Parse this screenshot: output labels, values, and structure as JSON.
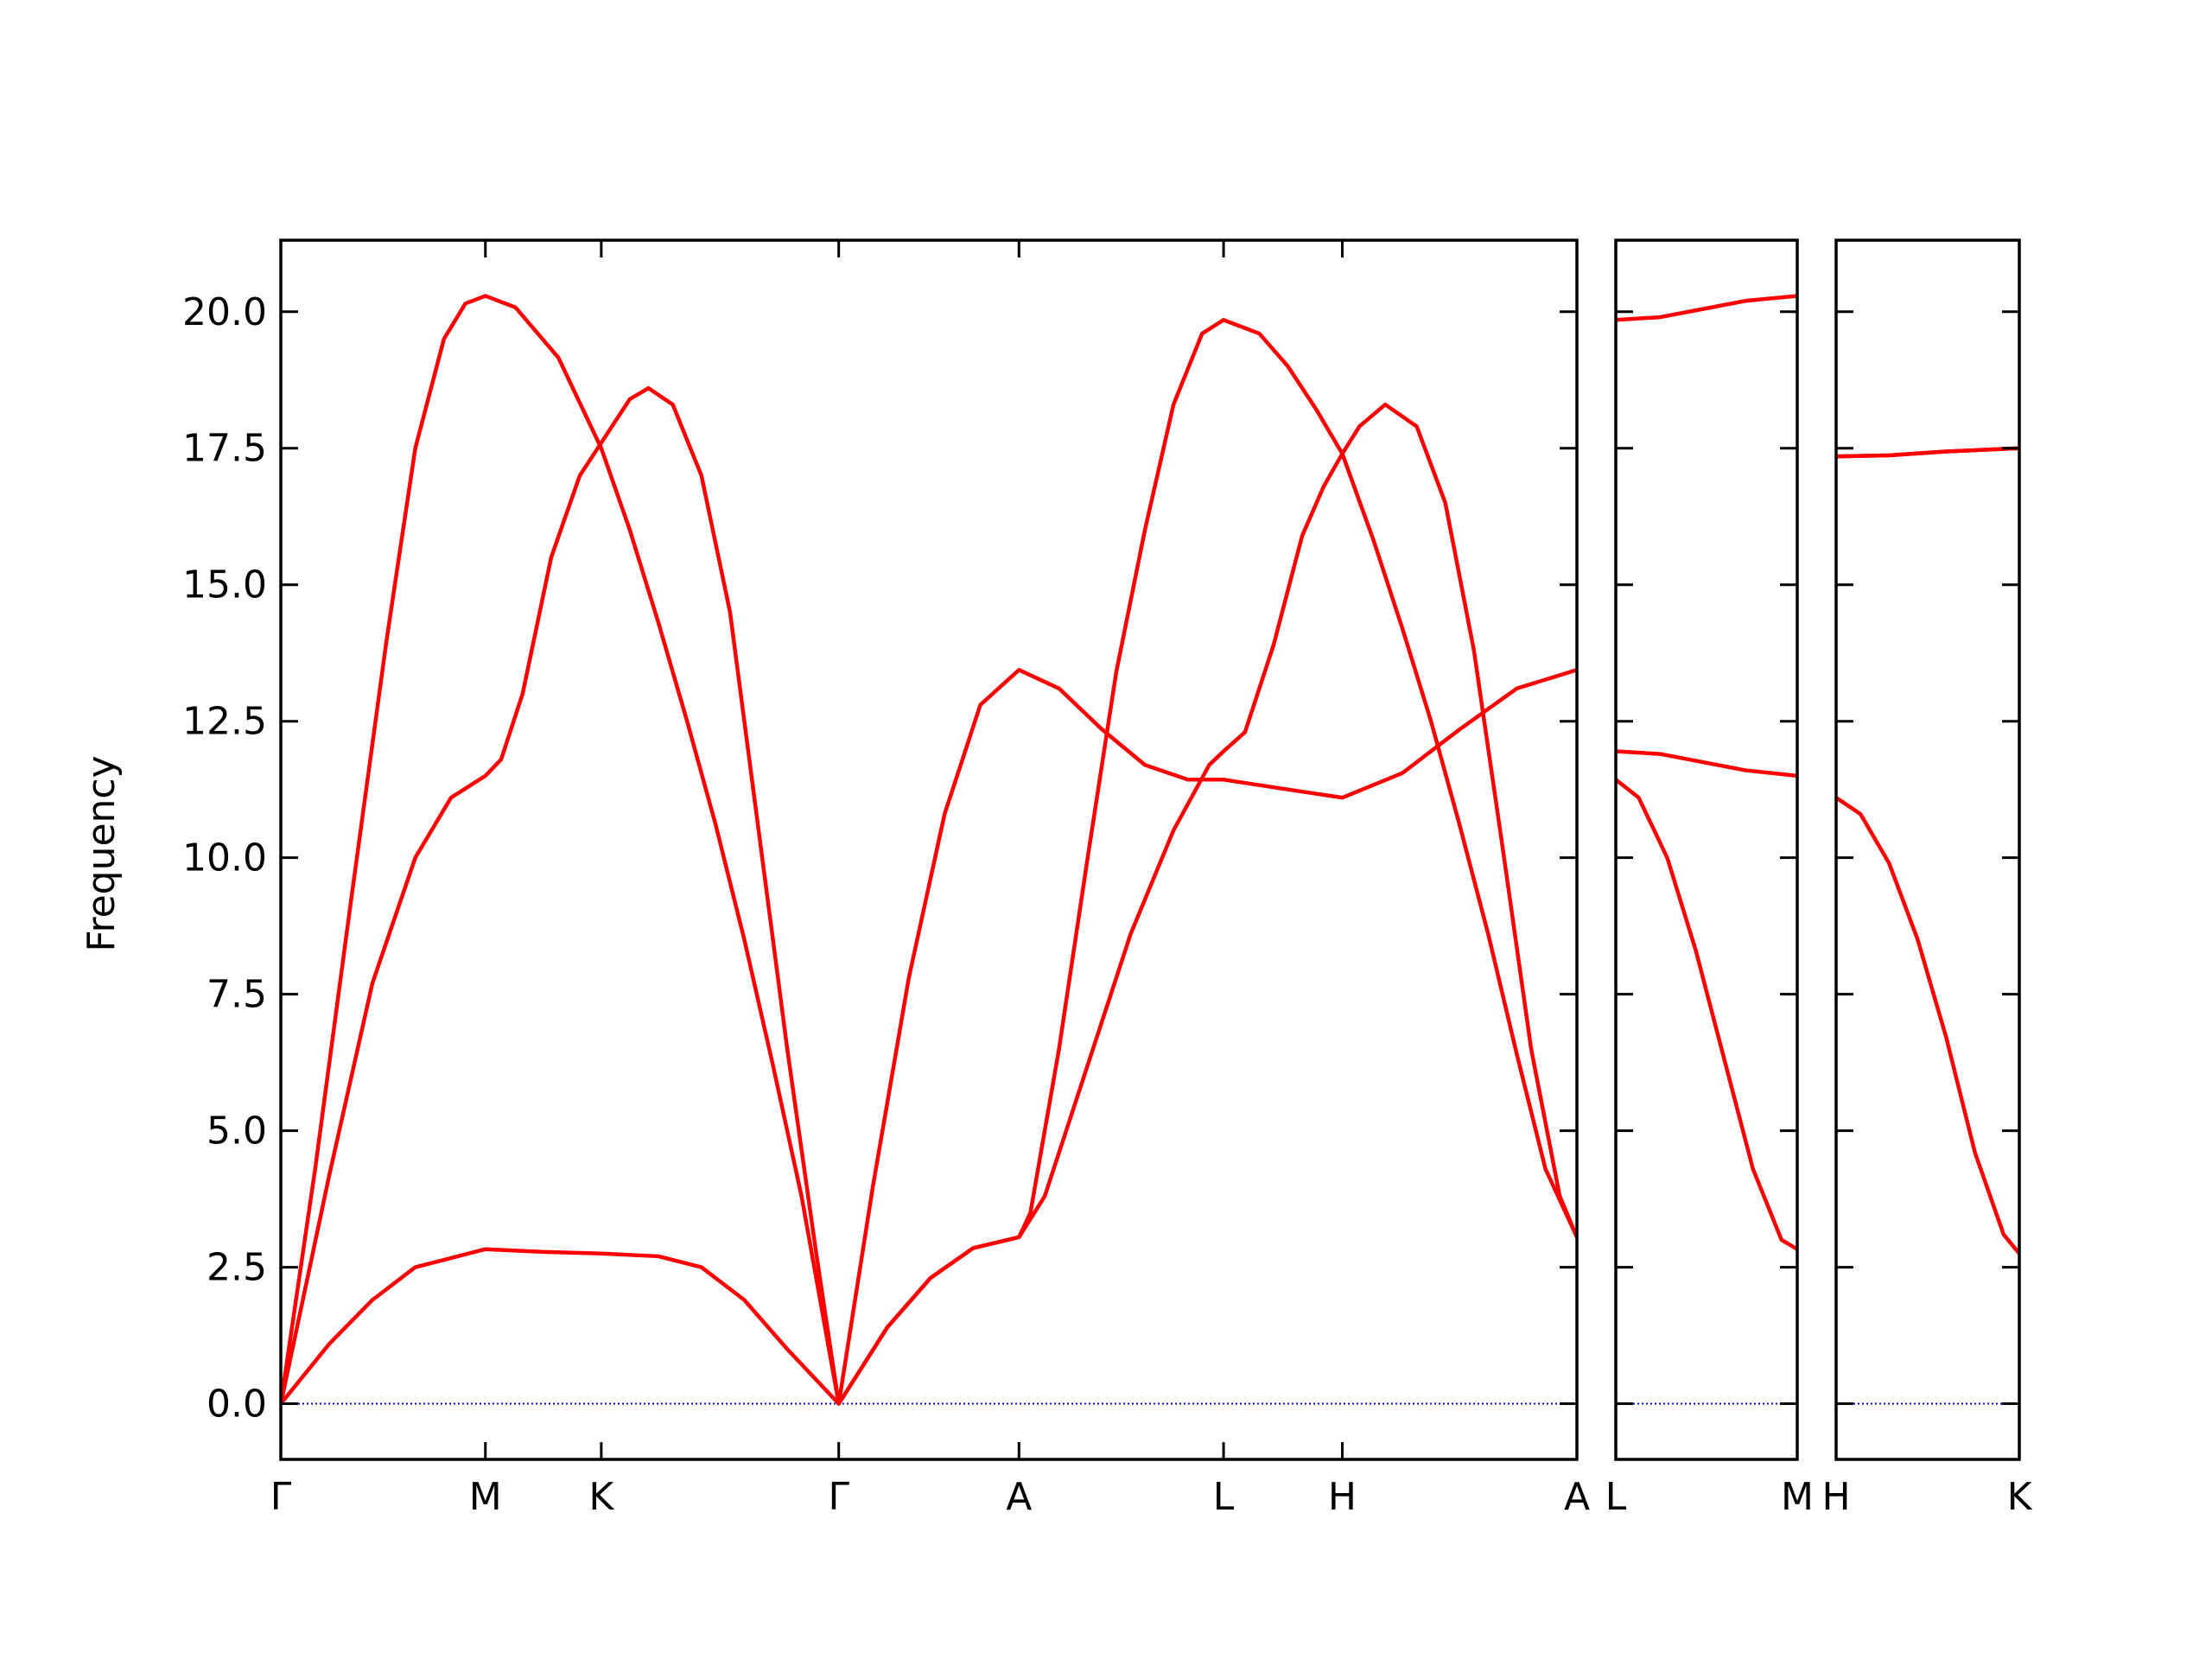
{
  "chart_data": [
    {
      "type": "line",
      "ylabel": "Frequency",
      "xlim": [
        0,
        9.06
      ],
      "ylim": [
        -1.02,
        21.31
      ],
      "xticks": [
        {
          "value": 0,
          "label": "Γ"
        },
        {
          "value": 1.43,
          "label": "M"
        },
        {
          "value": 2.24,
          "label": "K"
        },
        {
          "value": 3.9,
          "label": "Γ"
        },
        {
          "value": 5.16,
          "label": "A"
        },
        {
          "value": 6.59,
          "label": "L"
        },
        {
          "value": 7.42,
          "label": "H"
        },
        {
          "value": 9.06,
          "label": "A"
        }
      ],
      "yticks": [
        {
          "value": 0,
          "label": "0.0"
        },
        {
          "value": 2.5,
          "label": "2.5"
        },
        {
          "value": 5,
          "label": "5.0"
        },
        {
          "value": 7.5,
          "label": "7.5"
        },
        {
          "value": 10,
          "label": "10.0"
        },
        {
          "value": 12.5,
          "label": "12.5"
        },
        {
          "value": 15,
          "label": "15.0"
        },
        {
          "value": 17.5,
          "label": "17.5"
        },
        {
          "value": 20,
          "label": "20.0"
        }
      ],
      "show_ytick_labels": true,
      "zero_line": {
        "value": 0,
        "color": "#0000cc",
        "style": "dotted"
      },
      "series": [
        {
          "color": "#ff0000",
          "x": [
            0,
            0.34,
            0.64,
            0.94,
            1.43,
            1.84,
            2.24,
            2.64,
            2.94,
            3.24,
            3.54,
            3.9,
            4.24,
            4.54,
            4.84,
            5.16,
            5.34,
            5.64,
            5.94,
            6.24,
            6.49,
            6.59,
            6.74,
            6.94,
            7.14,
            7.29,
            7.42,
            7.54,
            7.72,
            7.94,
            8.14,
            8.34,
            8.54,
            8.74,
            8.94,
            9.06
          ],
          "values": [
            0,
            1.1,
            1.9,
            2.5,
            2.83,
            2.78,
            2.75,
            2.7,
            2.5,
            1.9,
            1.0,
            0,
            1.4,
            2.3,
            2.85,
            3.05,
            3.8,
            6.2,
            8.6,
            10.5,
            11.7,
            11.95,
            12.3,
            13.9,
            15.9,
            16.8,
            17.4,
            17.9,
            18.3,
            17.9,
            16.5,
            13.8,
            10.2,
            6.5,
            3.8,
            3.05
          ]
        },
        {
          "color": "#ff0000",
          "x": [
            0,
            0.34,
            0.64,
            0.94,
            1.19,
            1.43,
            1.54,
            1.69,
            1.89,
            2.09,
            2.24,
            2.44,
            2.57,
            2.74,
            2.94,
            3.14,
            3.34,
            3.54,
            3.74,
            3.9,
            4.24,
            4.54,
            4.84,
            5.16,
            5.24,
            5.44,
            5.64,
            5.84,
            6.04,
            6.24,
            6.44,
            6.59,
            6.84,
            7.04,
            7.24,
            7.42,
            7.64,
            7.84,
            8.04,
            8.24,
            8.44,
            8.64,
            8.84,
            9.06
          ],
          "values": [
            0,
            4.2,
            7.7,
            10.0,
            11.1,
            11.5,
            11.8,
            13.0,
            15.5,
            17.0,
            17.6,
            18.4,
            18.6,
            18.3,
            17.0,
            14.5,
            10.5,
            6.5,
            2.8,
            0,
            1.4,
            2.3,
            2.85,
            3.05,
            3.5,
            6.5,
            10.0,
            13.4,
            16.0,
            18.3,
            19.6,
            19.85,
            19.6,
            19.0,
            18.2,
            17.4,
            15.8,
            14.2,
            12.5,
            10.6,
            8.6,
            6.4,
            4.3,
            3.05
          ]
        },
        {
          "color": "#ff0000",
          "x": [
            0,
            0.24,
            0.49,
            0.74,
            0.94,
            1.14,
            1.29,
            1.43,
            1.64,
            1.94,
            2.24,
            2.44,
            2.64,
            2.84,
            3.04,
            3.24,
            3.44,
            3.64,
            3.9,
            4.14,
            4.39,
            4.64,
            4.89,
            5.16,
            5.44,
            5.74,
            6.04,
            6.34,
            6.59,
            7.04,
            7.42,
            7.84,
            8.24,
            8.64,
            9.06
          ],
          "values": [
            0,
            4.3,
            9.2,
            14.0,
            17.5,
            19.5,
            20.15,
            20.29,
            20.08,
            19.16,
            17.5,
            16.0,
            14.3,
            12.5,
            10.6,
            8.5,
            6.2,
            3.8,
            0,
            4.0,
            7.8,
            10.8,
            12.8,
            13.44,
            13.1,
            12.35,
            11.7,
            11.43,
            11.43,
            11.25,
            11.1,
            11.55,
            12.35,
            13.1,
            13.44
          ]
        }
      ]
    },
    {
      "type": "line",
      "xlim": [
        0,
        1.27
      ],
      "ylim": [
        -1.02,
        21.31
      ],
      "xticks": [
        {
          "value": 0,
          "label": "L"
        },
        {
          "value": 1.27,
          "label": "M"
        }
      ],
      "yticks": [
        0,
        2.5,
        5,
        7.5,
        10,
        12.5,
        15,
        17.5,
        20
      ],
      "show_ytick_labels": false,
      "zero_line": {
        "value": 0,
        "color": "#0000cc",
        "style": "dotted"
      },
      "series": [
        {
          "color": "#ff0000",
          "x": [
            0,
            0.31,
            0.61,
            0.91,
            1.27
          ],
          "values": [
            19.85,
            19.9,
            20.05,
            20.2,
            20.29
          ]
        },
        {
          "color": "#ff0000",
          "x": [
            0,
            0.31,
            0.61,
            0.91,
            1.27
          ],
          "values": [
            11.95,
            11.9,
            11.75,
            11.6,
            11.5
          ]
        },
        {
          "color": "#ff0000",
          "x": [
            0,
            0.16,
            0.36,
            0.56,
            0.76,
            0.96,
            1.16,
            1.27
          ],
          "values": [
            11.43,
            11.1,
            10.0,
            8.3,
            6.3,
            4.3,
            3.0,
            2.83
          ]
        }
      ]
    },
    {
      "type": "line",
      "xlim": [
        0,
        1.28
      ],
      "ylim": [
        -1.02,
        21.31
      ],
      "xticks": [
        {
          "value": 0,
          "label": "H"
        },
        {
          "value": 1.28,
          "label": "K"
        }
      ],
      "yticks": [
        0,
        2.5,
        5,
        7.5,
        10,
        12.5,
        15,
        17.5,
        20
      ],
      "show_ytick_labels": false,
      "zero_line": {
        "value": 0,
        "color": "#0000cc",
        "style": "dotted"
      },
      "series": [
        {
          "color": "#ff0000",
          "x": [
            0,
            0.37,
            0.77,
            1.28
          ],
          "values": [
            17.35,
            17.37,
            17.44,
            17.5
          ]
        },
        {
          "color": "#ff0000",
          "x": [
            0,
            0.37,
            0.77,
            1.28
          ],
          "values": [
            17.35,
            17.37,
            17.44,
            17.5
          ]
        },
        {
          "color": "#ff0000",
          "x": [
            0,
            0.17,
            0.37,
            0.57,
            0.77,
            0.97,
            1.17,
            1.28
          ],
          "values": [
            11.1,
            10.8,
            9.9,
            8.5,
            6.7,
            4.6,
            3.1,
            2.75
          ]
        }
      ]
    }
  ]
}
